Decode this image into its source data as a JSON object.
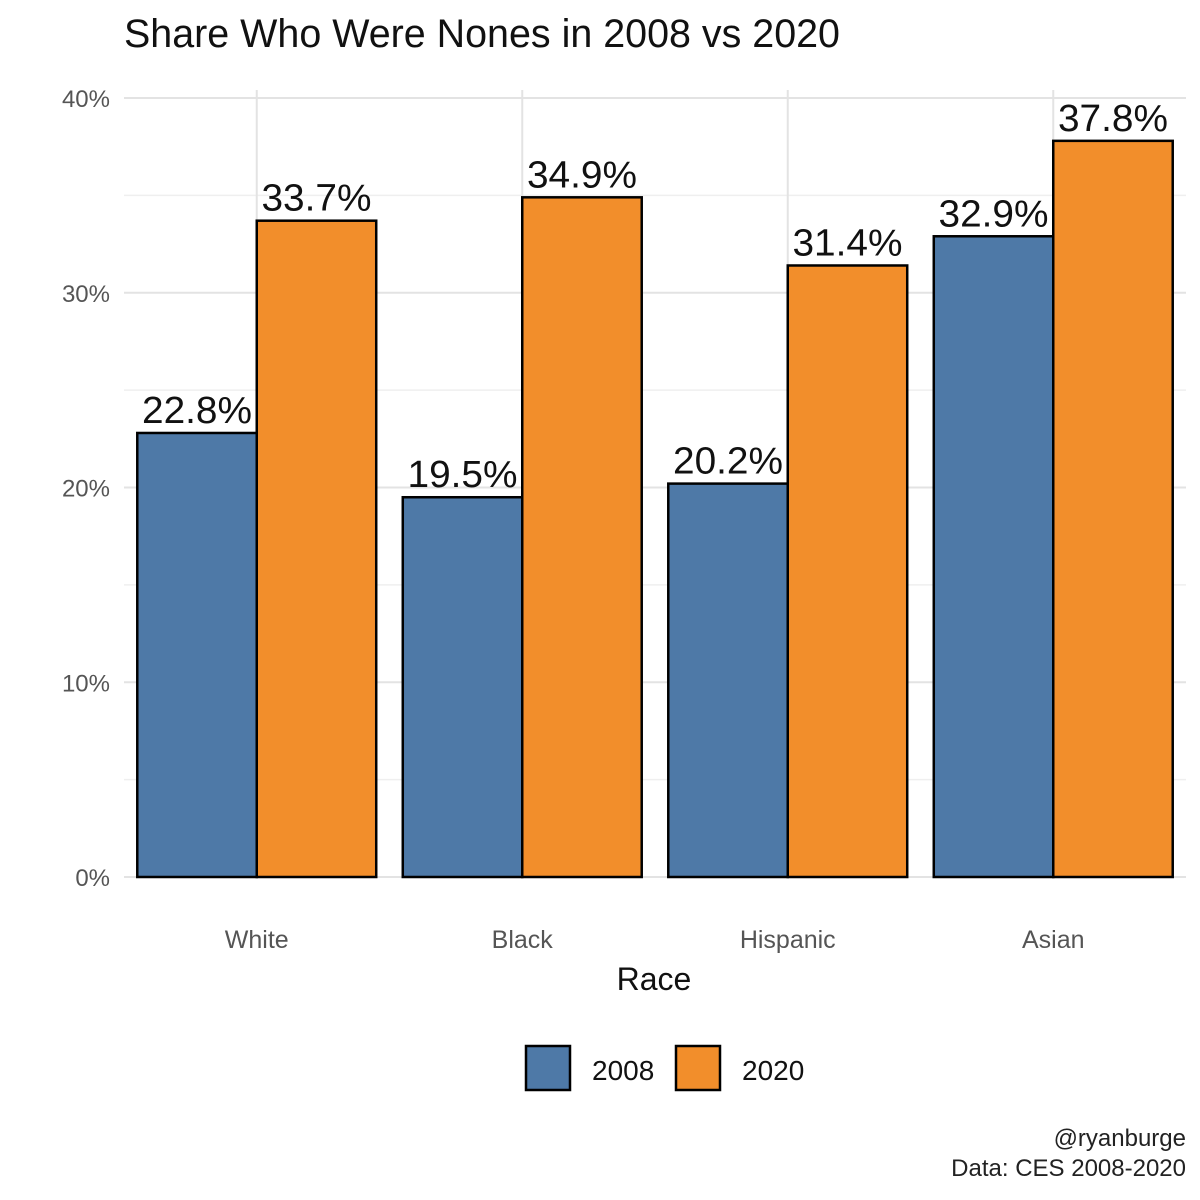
{
  "chart_data": {
    "type": "bar",
    "title": "Share Who Were Nones in 2008 vs 2020",
    "xlabel": "Race",
    "ylabel": "",
    "categories": [
      "White",
      "Black",
      "Hispanic",
      "Asian"
    ],
    "series": [
      {
        "name": "2008",
        "color": "#4E79A7",
        "values": [
          22.8,
          19.5,
          20.2,
          32.9
        ],
        "labels": [
          "22.8%",
          "19.5%",
          "20.2%",
          "32.9%"
        ]
      },
      {
        "name": "2020",
        "color": "#F28E2B",
        "values": [
          33.7,
          34.9,
          31.4,
          37.8
        ],
        "labels": [
          "33.7%",
          "34.9%",
          "31.4%",
          "37.8%"
        ]
      }
    ],
    "ylim": [
      0,
      40
    ],
    "yticks": [
      0,
      10,
      20,
      30,
      40
    ],
    "ytick_labels": [
      "0%",
      "10%",
      "20%",
      "30%",
      "40%"
    ],
    "grid": true,
    "legend_position": "bottom"
  },
  "caption": {
    "line1": "@ryanburge",
    "line2": "Data: CES 2008-2020"
  }
}
